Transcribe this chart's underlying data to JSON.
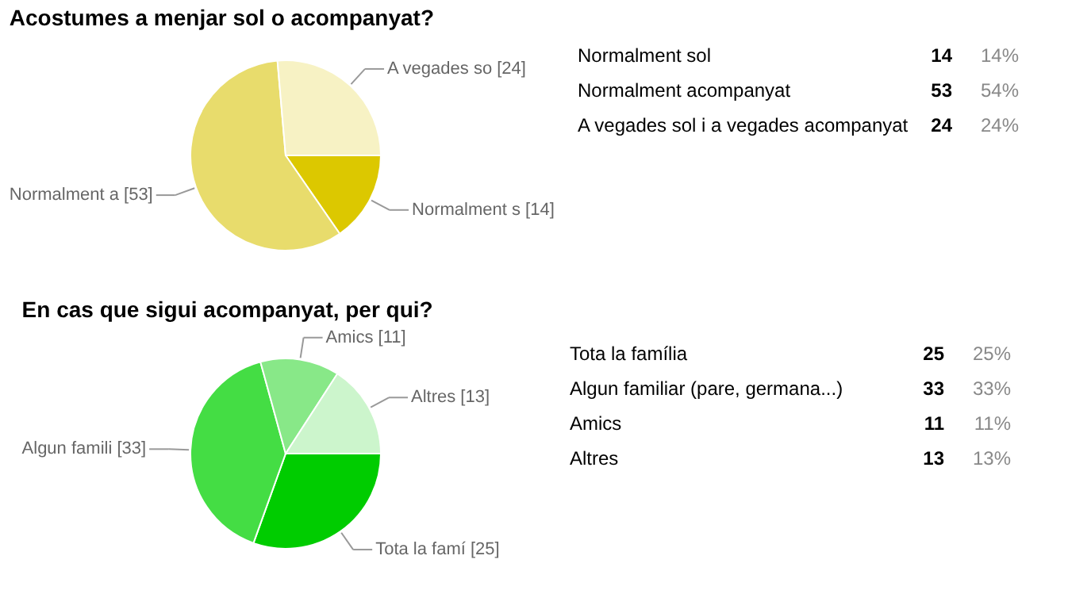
{
  "chart_data": [
    {
      "type": "pie",
      "title": "Acostumes a menjar sol o acompanyat?",
      "categories": [
        "Normalment s [14]",
        "Normalment a [53]",
        "A vegades so [24]"
      ],
      "values": [
        14,
        53,
        24
      ],
      "colors": [
        "#dcc800",
        "#e8dc6c",
        "#f7f2c4"
      ],
      "annotations": [
        "Normalment sol",
        "14",
        "14%",
        "Normalment acompanyat",
        "53",
        "54%",
        "A vegades sol i a vegades acompanyat",
        "24",
        "24%"
      ]
    },
    {
      "type": "pie",
      "title": "En cas que sigui acompanyat, per qui?",
      "categories": [
        "Tota la famí [25]",
        "Algun famili [33]",
        "Amics [11]",
        "Altres [13]"
      ],
      "values": [
        25,
        33,
        11,
        13
      ],
      "colors": [
        "#00cc00",
        "#44dd44",
        "#88e888",
        "#ccf5cc"
      ],
      "annotations": [
        "Tota la família",
        "25",
        "25%",
        "Algun familiar (pare, germana...)",
        "33",
        "33%",
        "Amics",
        "11",
        "11%",
        "Altres",
        "13",
        "13%"
      ]
    }
  ]
}
